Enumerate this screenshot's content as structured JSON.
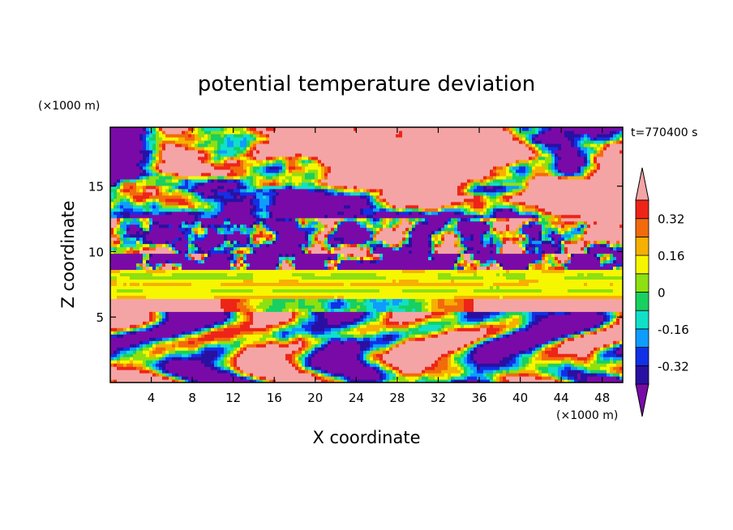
{
  "chart_data": {
    "type": "heatmap",
    "title": "potential temperature deviation",
    "xlabel": "X coordinate",
    "ylabel": "Z coordinate",
    "x_unit": "(×1000 m)",
    "y_unit": "(×1000 m)",
    "time_label": "t=770400 s",
    "xlim": [
      0,
      50
    ],
    "ylim": [
      0,
      19.5
    ],
    "x_ticks": [
      4,
      8,
      12,
      16,
      20,
      24,
      28,
      32,
      36,
      40,
      44,
      48
    ],
    "y_ticks": [
      5,
      10,
      15
    ],
    "colorbar": {
      "tick_labels": [
        "0.32",
        "0.16",
        "0",
        "-0.16",
        "-0.32"
      ],
      "tick_values": [
        0.32,
        0.16,
        0,
        -0.16,
        -0.32
      ],
      "levels": [
        -0.4,
        -0.32,
        -0.24,
        -0.16,
        -0.08,
        0,
        0.08,
        0.16,
        0.24,
        0.32,
        0.4
      ],
      "colors": [
        "#7a0aa8",
        "#2a10a0",
        "#1230e6",
        "#0f9cff",
        "#11e0c8",
        "#18d060",
        "#8ee010",
        "#f6f600",
        "#f6b000",
        "#f26a0c",
        "#ee2418",
        "#f4a4a4"
      ]
    },
    "grid": false,
    "legend": "colorbar-right"
  }
}
